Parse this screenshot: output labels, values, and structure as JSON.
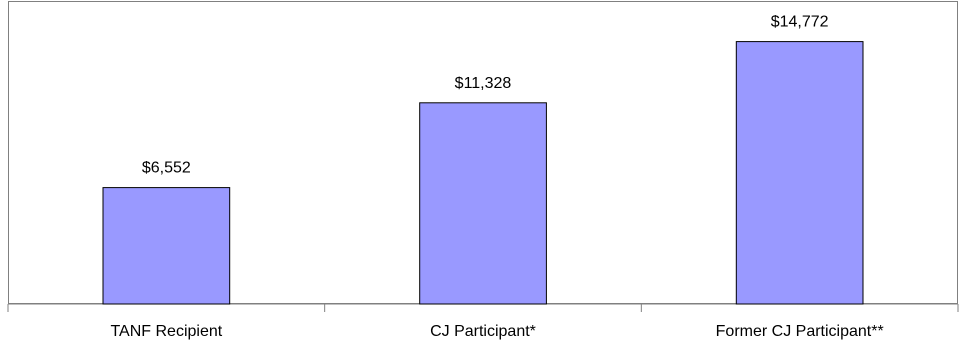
{
  "chart_data": {
    "type": "bar",
    "title": "",
    "xlabel": "",
    "ylabel": "",
    "categories": [
      "TANF Recipient",
      "CJ Participant*",
      "Former CJ Participant**"
    ],
    "values": [
      6552,
      11328,
      14772
    ],
    "value_labels": [
      "$6,552",
      "$11,328",
      "$14,772"
    ],
    "ylim": [
      0,
      17000
    ],
    "grid": false,
    "legend": "none",
    "bar_color": "#9999ff",
    "bar_outline_color": "#000000"
  }
}
